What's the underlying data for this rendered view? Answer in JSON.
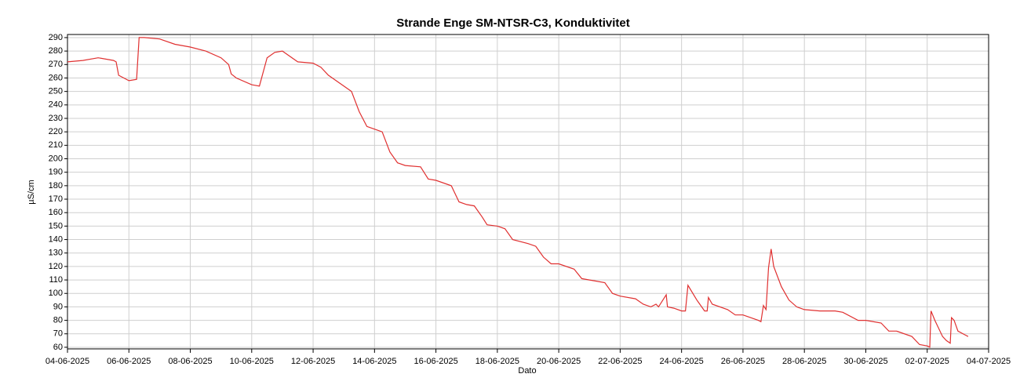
{
  "chart_data": {
    "type": "line",
    "title": "Strande Enge SM-NTSR-C3, Konduktivitet",
    "xlabel": "Dato",
    "ylabel": "µS/cm",
    "x": [
      "2025-06-04T00:00",
      "2025-06-04T12:00",
      "2025-06-05T00:00",
      "2025-06-05T12:00",
      "2025-06-05T14:00",
      "2025-06-05T16:00",
      "2025-06-06T00:00",
      "2025-06-06T06:00",
      "2025-06-06T08:00",
      "2025-06-06T12:00",
      "2025-06-07T00:00",
      "2025-06-07T12:00",
      "2025-06-08T00:00",
      "2025-06-08T12:00",
      "2025-06-09T00:00",
      "2025-06-09T06:00",
      "2025-06-09T08:00",
      "2025-06-09T12:00",
      "2025-06-10T00:00",
      "2025-06-10T06:00",
      "2025-06-10T12:00",
      "2025-06-10T18:00",
      "2025-06-11T00:00",
      "2025-06-11T12:00",
      "2025-06-12T00:00",
      "2025-06-12T06:00",
      "2025-06-12T12:00",
      "2025-06-13T00:00",
      "2025-06-13T06:00",
      "2025-06-13T12:00",
      "2025-06-13T18:00",
      "2025-06-14T00:00",
      "2025-06-14T06:00",
      "2025-06-14T12:00",
      "2025-06-14T18:00",
      "2025-06-15T00:00",
      "2025-06-15T12:00",
      "2025-06-15T18:00",
      "2025-06-16T00:00",
      "2025-06-16T12:00",
      "2025-06-16T18:00",
      "2025-06-17T00:00",
      "2025-06-17T06:00",
      "2025-06-17T12:00",
      "2025-06-17T16:00",
      "2025-06-18T00:00",
      "2025-06-18T06:00",
      "2025-06-18T12:00",
      "2025-06-19T00:00",
      "2025-06-19T06:00",
      "2025-06-19T12:00",
      "2025-06-19T18:00",
      "2025-06-20T00:00",
      "2025-06-20T12:00",
      "2025-06-20T18:00",
      "2025-06-21T00:00",
      "2025-06-21T12:00",
      "2025-06-21T18:00",
      "2025-06-22T00:00",
      "2025-06-22T12:00",
      "2025-06-22T18:00",
      "2025-06-23T00:00",
      "2025-06-23T04:00",
      "2025-06-23T06:00",
      "2025-06-23T12:00",
      "2025-06-23T13:00",
      "2025-06-23T18:00",
      "2025-06-24T00:00",
      "2025-06-24T03:00",
      "2025-06-24T05:00",
      "2025-06-24T12:00",
      "2025-06-24T18:00",
      "2025-06-24T20:00",
      "2025-06-24T21:00",
      "2025-06-25T00:00",
      "2025-06-25T12:00",
      "2025-06-25T18:00",
      "2025-06-26T00:00",
      "2025-06-26T12:00",
      "2025-06-26T14:00",
      "2025-06-26T16:00",
      "2025-06-26T18:00",
      "2025-06-26T20:00",
      "2025-06-26T22:00",
      "2025-06-27T00:00",
      "2025-06-27T06:00",
      "2025-06-27T12:00",
      "2025-06-27T18:00",
      "2025-06-28T00:00",
      "2025-06-28T12:00",
      "2025-06-29T00:00",
      "2025-06-29T06:00",
      "2025-06-29T18:00",
      "2025-06-30T00:00",
      "2025-06-30T12:00",
      "2025-06-30T18:00",
      "2025-07-01T00:00",
      "2025-07-01T12:00",
      "2025-07-01T18:00",
      "2025-07-02T00:00",
      "2025-07-02T02:00",
      "2025-07-02T03:00",
      "2025-07-02T06:00",
      "2025-07-02T12:00",
      "2025-07-02T15:00",
      "2025-07-02T18:00",
      "2025-07-02T19:00",
      "2025-07-02T21:00",
      "2025-07-03T00:00",
      "2025-07-03T06:00",
      "2025-07-03T08:00"
    ],
    "series": [
      {
        "name": "Konduktivitet",
        "color": "#e03030",
        "values": [
          272,
          273,
          275,
          273,
          272,
          262,
          258,
          259,
          290,
          290,
          289,
          285,
          283,
          280,
          275,
          270,
          263,
          260,
          255,
          254,
          275,
          279,
          280,
          272,
          271,
          268,
          262,
          254,
          250,
          235,
          224,
          222,
          220,
          205,
          197,
          195,
          194,
          185,
          184,
          180,
          168,
          166,
          165,
          157,
          151,
          150,
          148,
          140,
          137,
          135,
          127,
          122,
          122,
          118,
          111,
          110,
          108,
          100,
          98,
          96,
          92,
          90,
          92,
          90,
          99,
          90,
          89,
          87,
          87,
          106,
          95,
          87,
          87,
          97,
          92,
          88,
          84,
          84,
          80,
          79,
          91,
          88,
          119,
          133,
          120,
          105,
          95,
          90,
          88,
          87,
          87,
          86,
          80,
          80,
          78,
          72,
          72,
          68,
          62,
          61,
          60,
          87,
          80,
          68,
          65,
          63,
          82,
          80,
          72,
          69,
          68
        ]
      }
    ],
    "xlim": [
      "2025-06-04T00:00",
      "2025-07-04T00:00"
    ],
    "xticks": [
      {
        "value": "2025-06-04T00:00",
        "label": "04-06-2025"
      },
      {
        "value": "2025-06-06T00:00",
        "label": "06-06-2025"
      },
      {
        "value": "2025-06-08T00:00",
        "label": "08-06-2025"
      },
      {
        "value": "2025-06-10T00:00",
        "label": "10-06-2025"
      },
      {
        "value": "2025-06-12T00:00",
        "label": "12-06-2025"
      },
      {
        "value": "2025-06-14T00:00",
        "label": "14-06-2025"
      },
      {
        "value": "2025-06-16T00:00",
        "label": "16-06-2025"
      },
      {
        "value": "2025-06-18T00:00",
        "label": "18-06-2025"
      },
      {
        "value": "2025-06-20T00:00",
        "label": "20-06-2025"
      },
      {
        "value": "2025-06-22T00:00",
        "label": "22-06-2025"
      },
      {
        "value": "2025-06-24T00:00",
        "label": "24-06-2025"
      },
      {
        "value": "2025-06-26T00:00",
        "label": "26-06-2025"
      },
      {
        "value": "2025-06-28T00:00",
        "label": "28-06-2025"
      },
      {
        "value": "2025-06-30T00:00",
        "label": "30-06-2025"
      },
      {
        "value": "2025-07-02T00:00",
        "label": "02-07-2025"
      },
      {
        "value": "2025-07-04T00:00",
        "label": "04-07-2025"
      }
    ],
    "ylim": [
      58.8,
      292.3
    ],
    "yticks": [
      60,
      70,
      80,
      90,
      100,
      110,
      120,
      130,
      140,
      150,
      160,
      170,
      180,
      190,
      200,
      210,
      220,
      230,
      240,
      250,
      260,
      270,
      280,
      290
    ],
    "grid": true
  }
}
